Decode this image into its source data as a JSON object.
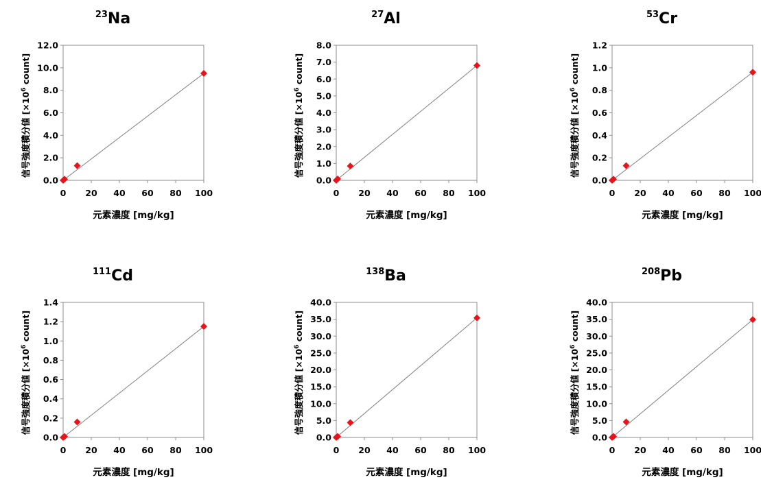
{
  "chart_data": [
    {
      "type": "scatter",
      "title": {
        "mass": "23",
        "element": "Na"
      },
      "xlabel": "元素濃度 [mg/kg]",
      "ylabel": {
        "prefix": "信号強度積分値 [×10",
        "exp": "6",
        "suffix": " count]"
      },
      "xlim": [
        0,
        100
      ],
      "ylim": [
        0,
        12
      ],
      "xticks": [
        "0",
        "20",
        "40",
        "60",
        "80",
        "100"
      ],
      "yticks": [
        "0.0",
        "2.0",
        "4.0",
        "6.0",
        "8.0",
        "10.0",
        "12.0"
      ],
      "points": [
        {
          "x": 0,
          "y": 0.0
        },
        {
          "x": 1,
          "y": 0.1
        },
        {
          "x": 10,
          "y": 1.3
        },
        {
          "x": 100,
          "y": 9.5
        }
      ],
      "trendline": [
        [
          0,
          0.0
        ],
        [
          100,
          9.5
        ]
      ],
      "grid": false,
      "marker_color": "#e8141b",
      "line_color": "#7f7f7f"
    },
    {
      "type": "scatter",
      "title": {
        "mass": "27",
        "element": "Al"
      },
      "xlabel": "元素濃度 [mg/kg]",
      "ylabel": {
        "prefix": "信号強度積分値 [×10",
        "exp": "6",
        "suffix": " count]"
      },
      "xlim": [
        0,
        100
      ],
      "ylim": [
        0,
        8
      ],
      "xticks": [
        "0",
        "20",
        "40",
        "60",
        "80",
        "100"
      ],
      "yticks": [
        "0.0",
        "1.0",
        "2.0",
        "3.0",
        "4.0",
        "5.0",
        "6.0",
        "7.0",
        "8.0"
      ],
      "points": [
        {
          "x": 0,
          "y": 0.0
        },
        {
          "x": 1,
          "y": 0.08
        },
        {
          "x": 10,
          "y": 0.85
        },
        {
          "x": 100,
          "y": 6.8
        }
      ],
      "trendline": [
        [
          0,
          0.0
        ],
        [
          100,
          6.8
        ]
      ],
      "grid": false,
      "marker_color": "#e8141b",
      "line_color": "#7f7f7f"
    },
    {
      "type": "scatter",
      "title": {
        "mass": "53",
        "element": "Cr"
      },
      "xlabel": "元素濃度 [mg/kg]",
      "ylabel": {
        "prefix": "信号強度積分値 [×10",
        "exp": "6",
        "suffix": " count]"
      },
      "xlim": [
        0,
        100
      ],
      "ylim": [
        0,
        1.2
      ],
      "xticks": [
        "0",
        "20",
        "40",
        "60",
        "80",
        "100"
      ],
      "yticks": [
        "0.0",
        "0.2",
        "0.4",
        "0.6",
        "0.8",
        "1.0",
        "1.2"
      ],
      "points": [
        {
          "x": 0,
          "y": 0.0
        },
        {
          "x": 1,
          "y": 0.01
        },
        {
          "x": 10,
          "y": 0.13
        },
        {
          "x": 100,
          "y": 0.96
        }
      ],
      "trendline": [
        [
          0,
          0.0
        ],
        [
          100,
          0.96
        ]
      ],
      "grid": false,
      "marker_color": "#e8141b",
      "line_color": "#7f7f7f"
    },
    {
      "type": "scatter",
      "title": {
        "mass": "111",
        "element": "Cd"
      },
      "xlabel": "元素濃度 [mg/kg]",
      "ylabel": {
        "prefix": "信号強度積分値 [×10",
        "exp": "6",
        "suffix": " count]"
      },
      "xlim": [
        0,
        100
      ],
      "ylim": [
        0,
        1.4
      ],
      "xticks": [
        "0",
        "20",
        "40",
        "60",
        "80",
        "100"
      ],
      "yticks": [
        "0.0",
        "0.2",
        "0.4",
        "0.6",
        "0.8",
        "1.0",
        "1.2",
        "1.4"
      ],
      "points": [
        {
          "x": 0,
          "y": 0.0
        },
        {
          "x": 1,
          "y": 0.01
        },
        {
          "x": 10,
          "y": 0.16
        },
        {
          "x": 100,
          "y": 1.15
        }
      ],
      "trendline": [
        [
          0,
          0.0
        ],
        [
          100,
          1.15
        ]
      ],
      "grid": false,
      "marker_color": "#e8141b",
      "line_color": "#7f7f7f"
    },
    {
      "type": "scatter",
      "title": {
        "mass": "138",
        "element": "Ba"
      },
      "xlabel": "元素濃度 [mg/kg]",
      "ylabel": {
        "prefix": "信号強度積分値 [×10",
        "exp": "6",
        "suffix": " count]"
      },
      "xlim": [
        0,
        100
      ],
      "ylim": [
        0,
        40
      ],
      "xticks": [
        "0",
        "20",
        "40",
        "60",
        "80",
        "100"
      ],
      "yticks": [
        "0.0",
        "5.0",
        "10.0",
        "15.0",
        "20.0",
        "25.0",
        "30.0",
        "35.0",
        "40.0"
      ],
      "points": [
        {
          "x": 0,
          "y": 0.0
        },
        {
          "x": 1,
          "y": 0.3
        },
        {
          "x": 10,
          "y": 4.4
        },
        {
          "x": 100,
          "y": 35.4
        }
      ],
      "trendline": [
        [
          0,
          0.0
        ],
        [
          100,
          35.4
        ]
      ],
      "grid": false,
      "marker_color": "#e8141b",
      "line_color": "#7f7f7f"
    },
    {
      "type": "scatter",
      "title": {
        "mass": "208",
        "element": "Pb"
      },
      "xlabel": "元素濃度 [mg/kg]",
      "ylabel": {
        "prefix": "信号強度積分値 [×10",
        "exp": "6",
        "suffix": " count]"
      },
      "xlim": [
        0,
        100
      ],
      "ylim": [
        0,
        40
      ],
      "xticks": [
        "0",
        "20",
        "40",
        "60",
        "80",
        "100"
      ],
      "yticks": [
        "0.0",
        "5.0",
        "10.0",
        "15.0",
        "20.0",
        "25.0",
        "30.0",
        "35.0",
        "40.0"
      ],
      "points": [
        {
          "x": 0,
          "y": 0.0
        },
        {
          "x": 1,
          "y": 0.3
        },
        {
          "x": 10,
          "y": 4.6
        },
        {
          "x": 100,
          "y": 34.9
        }
      ],
      "trendline": [
        [
          0,
          0.0
        ],
        [
          100,
          34.9
        ]
      ],
      "grid": false,
      "marker_color": "#e8141b",
      "line_color": "#7f7f7f"
    }
  ]
}
